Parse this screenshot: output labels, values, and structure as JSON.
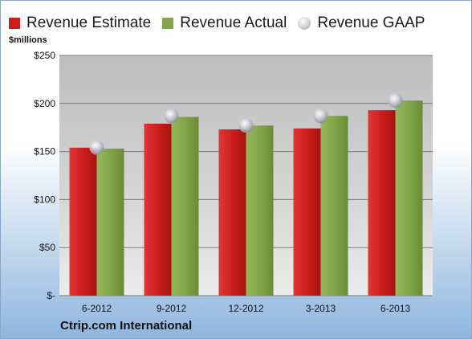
{
  "unit_label": "$millions",
  "source_label": "Ctrip.com International",
  "colors": {
    "estimate": "#cc1f1f",
    "actual": "#82a64a",
    "gaap": "#b7b7c0",
    "plot_bg": "#cfcfcf"
  },
  "chart_data": {
    "type": "bar",
    "categories": [
      "6-2012",
      "9-2012",
      "12-2012",
      "3-2013",
      "6-2013"
    ],
    "series": [
      {
        "name": "Revenue Estimate",
        "values": [
          154,
          179,
          173,
          174,
          193
        ]
      },
      {
        "name": "Revenue Actual",
        "values": [
          153,
          186,
          177,
          187,
          203
        ]
      },
      {
        "name": "Revenue GAAP",
        "values": [
          154,
          187,
          177,
          187,
          203
        ]
      }
    ],
    "ylim": [
      0,
      250
    ],
    "y_ticks": [
      0,
      50,
      100,
      150,
      200,
      250
    ],
    "y_tick_labels": [
      "$-",
      "$50",
      "$100",
      "$150",
      "$200",
      "$250"
    ],
    "grid": true,
    "legend_position": "top"
  }
}
